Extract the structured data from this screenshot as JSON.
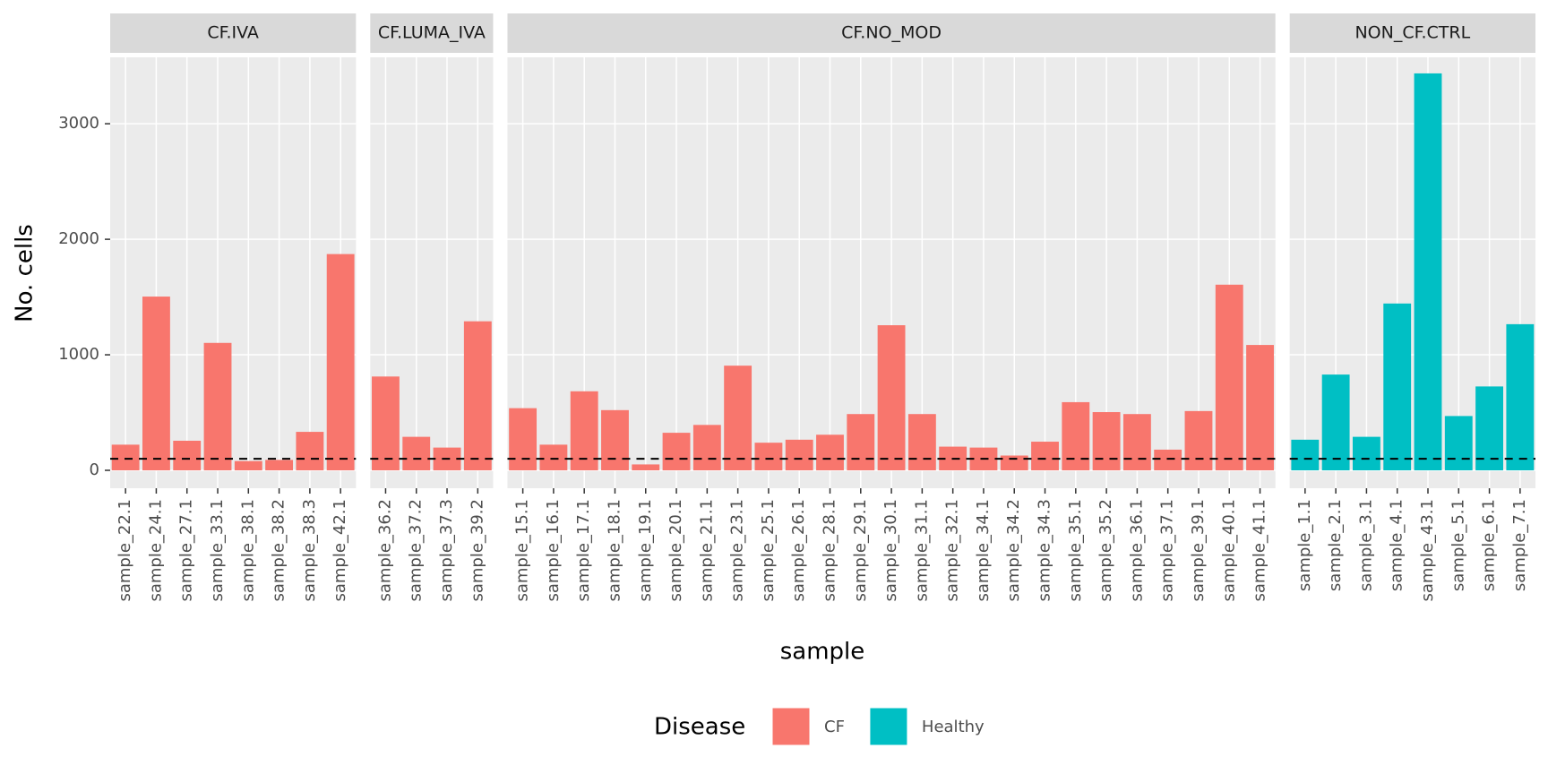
{
  "chart_data": {
    "type": "bar",
    "xlabel": "sample",
    "ylabel": "No. cells",
    "legend_title": "Disease",
    "legend_position": "bottom",
    "ylim": [
      -155,
      3575
    ],
    "yticks": [
      0,
      1000,
      2000,
      3000
    ],
    "grid": true,
    "threshold": 100,
    "series": [
      {
        "name": "CF",
        "color": "#f8766d",
        "panels": [
          {
            "title": "CF.IVA",
            "categories": [
              "sample_22.1",
              "sample_24.1",
              "sample_27.1",
              "sample_33.1",
              "sample_38.1",
              "sample_38.2",
              "sample_38.3",
              "sample_42.1"
            ],
            "values": [
              222,
              1504,
              256,
              1103,
              80,
              90,
              333,
              1872
            ]
          },
          {
            "title": "CF.LUMA_IVA",
            "categories": [
              "sample_36.2",
              "sample_37.2",
              "sample_37.3",
              "sample_39.2"
            ],
            "values": [
              812,
              290,
              197,
              1290
            ]
          },
          {
            "title": "CF.NO_MOD",
            "categories": [
              "sample_15.1",
              "sample_16.1",
              "sample_17.1",
              "sample_18.1",
              "sample_19.1",
              "sample_20.1",
              "sample_21.1",
              "sample_23.1",
              "sample_25.1",
              "sample_26.1",
              "sample_28.1",
              "sample_29.1",
              "sample_30.1",
              "sample_31.1",
              "sample_32.1",
              "sample_34.1",
              "sample_34.2",
              "sample_34.3",
              "sample_35.1",
              "sample_35.2",
              "sample_36.1",
              "sample_37.1",
              "sample_39.1",
              "sample_40.1",
              "sample_41.1"
            ],
            "values": [
              538,
              222,
              684,
              521,
              51,
              325,
              393,
              906,
              239,
              265,
              308,
              487,
              1256,
              487,
              205,
              197,
              128,
              248,
              590,
              504,
              487,
              179,
              513,
              1607,
              1085
            ]
          }
        ]
      },
      {
        "name": "Healthy",
        "color": "#00bfc4",
        "panels": [
          {
            "title": "NON_CF.CTRL",
            "categories": [
              "sample_1.1",
              "sample_2.1",
              "sample_3.1",
              "sample_4.1",
              "sample_43.1",
              "sample_5.1",
              "sample_6.1",
              "sample_7.1"
            ],
            "values": [
              265,
              829,
              290,
              1444,
              3436,
              470,
              726,
              1265
            ]
          }
        ]
      }
    ]
  }
}
